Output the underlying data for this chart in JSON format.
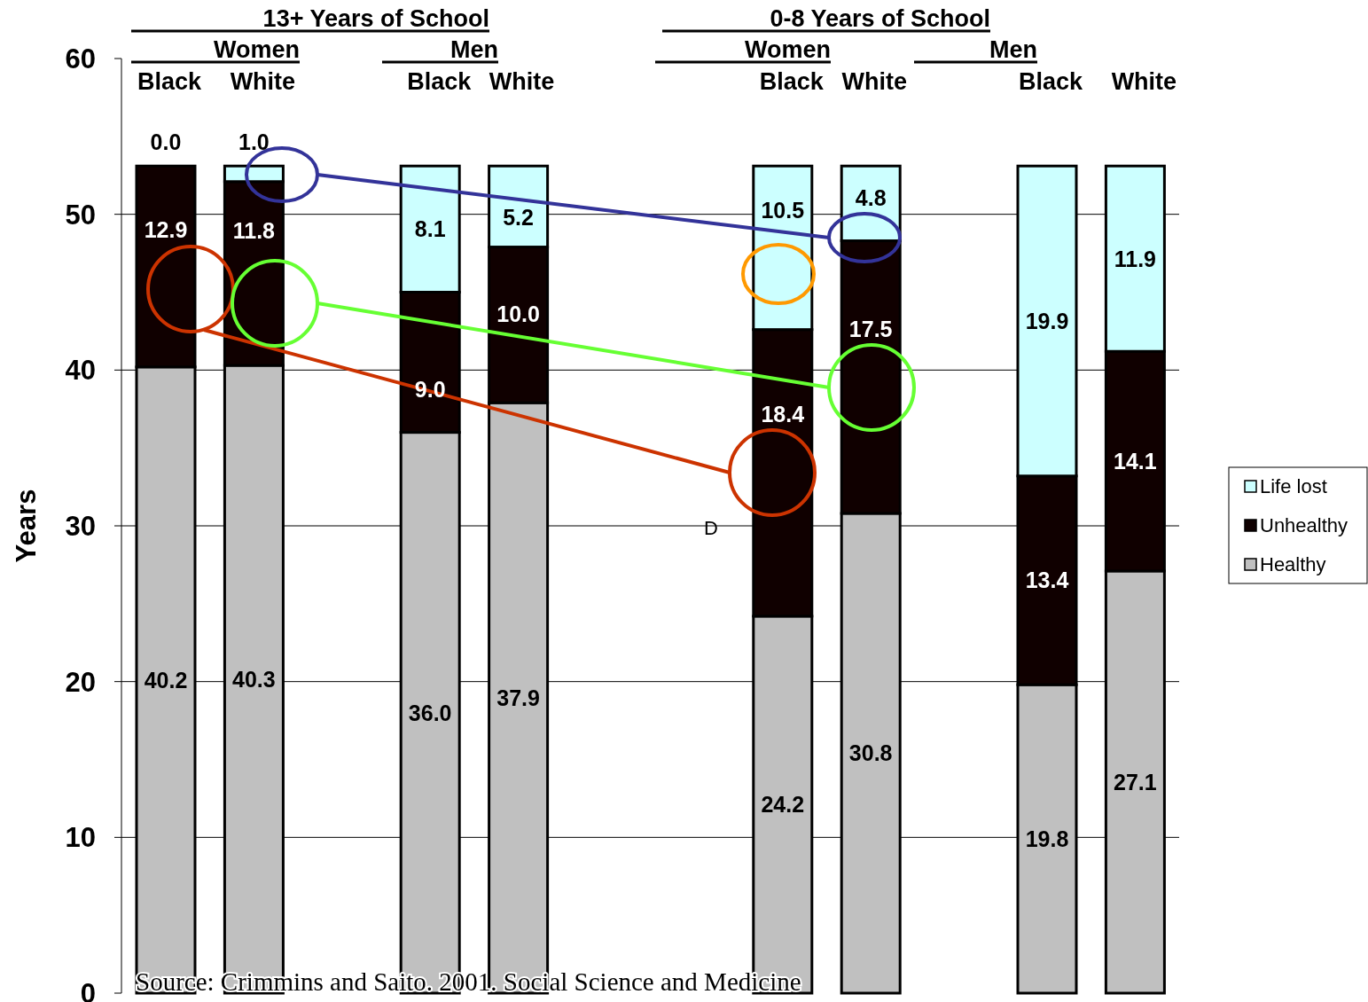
{
  "chart_data": {
    "type": "bar",
    "stacked": true,
    "ylabel": "Years",
    "categories": [
      "Black",
      "White",
      null,
      "Black",
      "White",
      null,
      null,
      "Black",
      "White",
      null,
      "Black",
      "White"
    ],
    "series": [
      {
        "name": "Healthy",
        "color": "#c0c0c0",
        "values": [
          40.2,
          40.3,
          null,
          36.0,
          37.9,
          null,
          null,
          24.2,
          30.8,
          null,
          19.8,
          27.1
        ],
        "value_labels": [
          "40.2",
          "40.3",
          null,
          "36.0",
          "37.9",
          null,
          null,
          "24.2",
          "30.8",
          null,
          "19.8",
          "27.1"
        ]
      },
      {
        "name": "Unhealthy",
        "color": "#100000",
        "values": [
          12.9,
          11.8,
          null,
          9.0,
          10.0,
          null,
          null,
          18.4,
          17.5,
          null,
          13.4,
          14.1
        ],
        "value_labels": [
          "12.9",
          "11.8",
          null,
          "9.0",
          "10.0",
          null,
          null,
          "18.4",
          "17.5",
          null,
          "13.4",
          "14.1"
        ]
      },
      {
        "name": "Life lost",
        "color": "#ccffff",
        "values": [
          0.0,
          1.0,
          null,
          8.1,
          5.2,
          null,
          null,
          10.5,
          4.8,
          null,
          19.9,
          11.9
        ],
        "value_labels": [
          "0.0",
          "1.0",
          null,
          "8.1",
          "5.2",
          null,
          null,
          "10.5",
          "4.8",
          null,
          "19.9",
          "11.9"
        ]
      }
    ],
    "ylim": [
      0,
      60
    ],
    "yticks": [
      0,
      10,
      20,
      30,
      40,
      50,
      60
    ],
    "grid": "y",
    "legend": "right",
    "annotations": [
      "13+ Years of School",
      "Women",
      "Men",
      "0-8 Years of School",
      "Women",
      "Men",
      "D",
      "Source:  Crimmins and Saito. 2001. Social Science and Medicine"
    ]
  }
}
